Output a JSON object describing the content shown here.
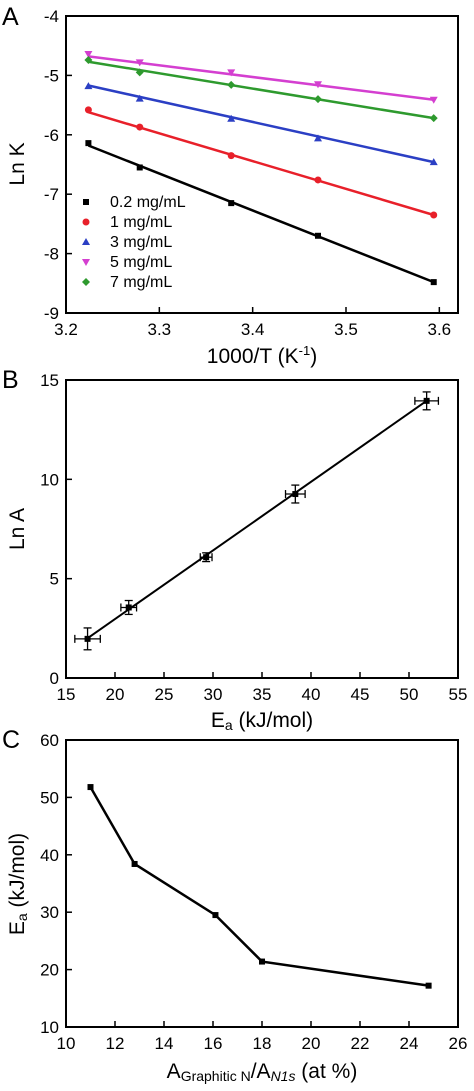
{
  "chart_data": [
    {
      "panel": "A",
      "type": "scatter",
      "xlabel": "1000/T (K⁻¹)",
      "ylabel": "Ln K",
      "xlim": [
        3.2,
        3.62
      ],
      "ylim": [
        -9,
        -4
      ],
      "xticks": [
        "3.2",
        "3.3",
        "3.4",
        "3.5",
        "3.6"
      ],
      "yticks": [
        "-9",
        "-8",
        "-7",
        "-6",
        "-5",
        "-4"
      ],
      "legend_position": "bottom-left",
      "series": [
        {
          "name": "0.2 mg/mL",
          "color": "#000000",
          "marker": "square",
          "x": [
            3.224,
            3.279,
            3.377,
            3.47,
            3.594
          ],
          "y": [
            -6.14,
            -6.55,
            -7.15,
            -7.7,
            -8.48
          ],
          "fit": [
            [
              3.224,
              -6.18
            ],
            [
              3.594,
              -8.48
            ]
          ]
        },
        {
          "name": "1 mg/mL",
          "color": "#e8202a",
          "marker": "circle",
          "x": [
            3.224,
            3.279,
            3.377,
            3.47,
            3.594
          ],
          "y": [
            -5.58,
            -5.87,
            -6.35,
            -6.76,
            -7.35
          ],
          "fit": [
            [
              3.224,
              -5.62
            ],
            [
              3.594,
              -7.35
            ]
          ]
        },
        {
          "name": "3 mg/mL",
          "color": "#2b3fc4",
          "marker": "triangle-up",
          "x": [
            3.224,
            3.279,
            3.377,
            3.47,
            3.594
          ],
          "y": [
            -5.18,
            -5.39,
            -5.73,
            -6.06,
            -6.46
          ],
          "fit": [
            [
              3.224,
              -5.17
            ],
            [
              3.594,
              -6.46
            ]
          ]
        },
        {
          "name": "5 mg/mL",
          "color": "#d43fd0",
          "marker": "triangle-down",
          "x": [
            3.224,
            3.279,
            3.377,
            3.47,
            3.594
          ],
          "y": [
            -4.64,
            -4.78,
            -4.95,
            -5.15,
            -5.41
          ],
          "fit": [
            [
              3.224,
              -4.68
            ],
            [
              3.594,
              -5.41
            ]
          ]
        },
        {
          "name": "7 mg/mL",
          "color": "#2e9a2e",
          "marker": "diamond",
          "x": [
            3.224,
            3.279,
            3.377,
            3.47,
            3.594
          ],
          "y": [
            -4.74,
            -4.95,
            -5.16,
            -5.4,
            -5.72
          ],
          "fit": [
            [
              3.224,
              -4.77
            ],
            [
              3.594,
              -5.72
            ]
          ]
        }
      ]
    },
    {
      "panel": "B",
      "type": "scatter",
      "xlabel": "Ea (kJ/mol)",
      "xlabel_main": "E",
      "xlabel_sub": "a",
      "xlabel_rest": " (kJ/mol)",
      "ylabel": "Ln A",
      "xlim": [
        15,
        55
      ],
      "ylim": [
        0,
        15
      ],
      "xticks": [
        "15",
        "20",
        "25",
        "30",
        "35",
        "40",
        "45",
        "50",
        "55"
      ],
      "yticks": [
        "0",
        "5",
        "10",
        "15"
      ],
      "series": [
        {
          "marker": "square",
          "color": "#000000",
          "x": [
            17.2,
            21.4,
            29.3,
            38.4,
            51.8
          ],
          "y": [
            1.97,
            3.55,
            6.08,
            9.26,
            13.95
          ],
          "xerr": [
            1.3,
            0.8,
            0.6,
            1.0,
            1.2
          ],
          "yerr": [
            0.55,
            0.35,
            0.22,
            0.45,
            0.45
          ],
          "fit": [
            [
              17.2,
              2.0
            ],
            [
              51.8,
              13.95
            ]
          ]
        }
      ]
    },
    {
      "panel": "C",
      "type": "line",
      "xlabel": "AGraphitic N/AN1s (at %)",
      "xlabel_a1": "A",
      "xlabel_sub1": "Graphitic N",
      "xlabel_a2": "/A",
      "xlabel_sub2": "N1s",
      "xlabel_rest": " (at %)",
      "ylabel": "Ea (kJ/mol)",
      "ylabel_main": "E",
      "ylabel_sub": "a",
      "ylabel_rest": " (kJ/mol)",
      "xlim": [
        10,
        26
      ],
      "ylim": [
        10,
        60
      ],
      "xticks": [
        "10",
        "12",
        "14",
        "16",
        "18",
        "20",
        "22",
        "24",
        "26"
      ],
      "yticks": [
        "10",
        "20",
        "30",
        "40",
        "50",
        "60"
      ],
      "series": [
        {
          "marker": "square",
          "color": "#000000",
          "x": [
            11.0,
            12.8,
            16.1,
            18.0,
            24.8
          ],
          "y": [
            51.8,
            38.4,
            29.5,
            21.4,
            17.2
          ]
        }
      ]
    }
  ],
  "panels": {
    "a_letter": "A",
    "b_letter": "B",
    "c_letter": "C"
  }
}
